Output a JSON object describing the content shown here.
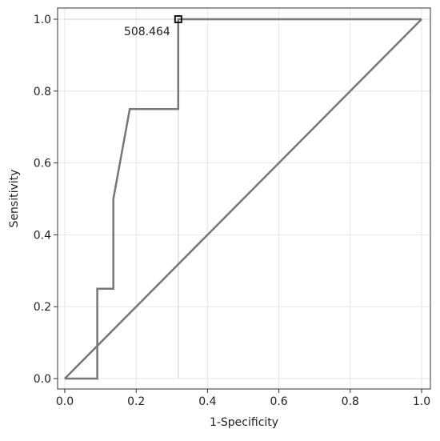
{
  "chart_data": {
    "type": "line",
    "title": "",
    "xlabel": "1-Specificity",
    "ylabel": "Sensitivity",
    "xlim": [
      0,
      1
    ],
    "ylim": [
      0,
      1
    ],
    "x_ticks": [
      0.0,
      0.2,
      0.4,
      0.6,
      0.8,
      1.0
    ],
    "x_tick_labels": [
      "0.0",
      "0.2",
      "0.4",
      "0.6",
      "0.8",
      "1.0"
    ],
    "y_ticks": [
      0.0,
      0.2,
      0.4,
      0.6,
      0.8,
      1.0
    ],
    "y_tick_labels": [
      "0.0",
      "0.2",
      "0.4",
      "0.6",
      "0.8",
      "1.0"
    ],
    "grid": true,
    "series": [
      {
        "kind": "roc-curve",
        "color": "#777777",
        "points": [
          [
            0.0,
            0.0
          ],
          [
            0.091,
            0.0
          ],
          [
            0.091,
            0.25
          ],
          [
            0.136,
            0.25
          ],
          [
            0.136,
            0.5
          ],
          [
            0.182,
            0.75
          ],
          [
            0.318,
            0.75
          ],
          [
            0.318,
            1.0
          ],
          [
            1.0,
            1.0
          ]
        ]
      },
      {
        "kind": "reference-diagonal",
        "color": "#777777",
        "points": [
          [
            0.0,
            0.0
          ],
          [
            1.0,
            1.0
          ]
        ]
      }
    ],
    "cutoff_guides": {
      "color": "#dddddd",
      "x": 0.318,
      "y": 1.0
    },
    "annotations": [
      {
        "text": "508.464",
        "x": 0.318,
        "y": 1.0
      }
    ]
  }
}
